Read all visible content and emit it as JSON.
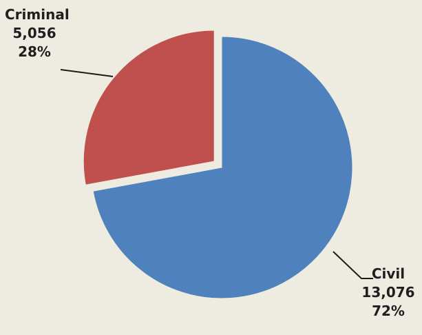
{
  "chart_data": {
    "type": "pie",
    "slices": [
      {
        "name": "Civil",
        "value": 13076,
        "display_value": "13,076",
        "percent_label": "72%",
        "color": "#4f81bd"
      },
      {
        "name": "Criminal",
        "value": 5056,
        "display_value": "5,056",
        "percent_label": "28%",
        "color": "#c0504d"
      }
    ],
    "background_color": "#eeebe1",
    "exploded_slice": "Criminal"
  }
}
